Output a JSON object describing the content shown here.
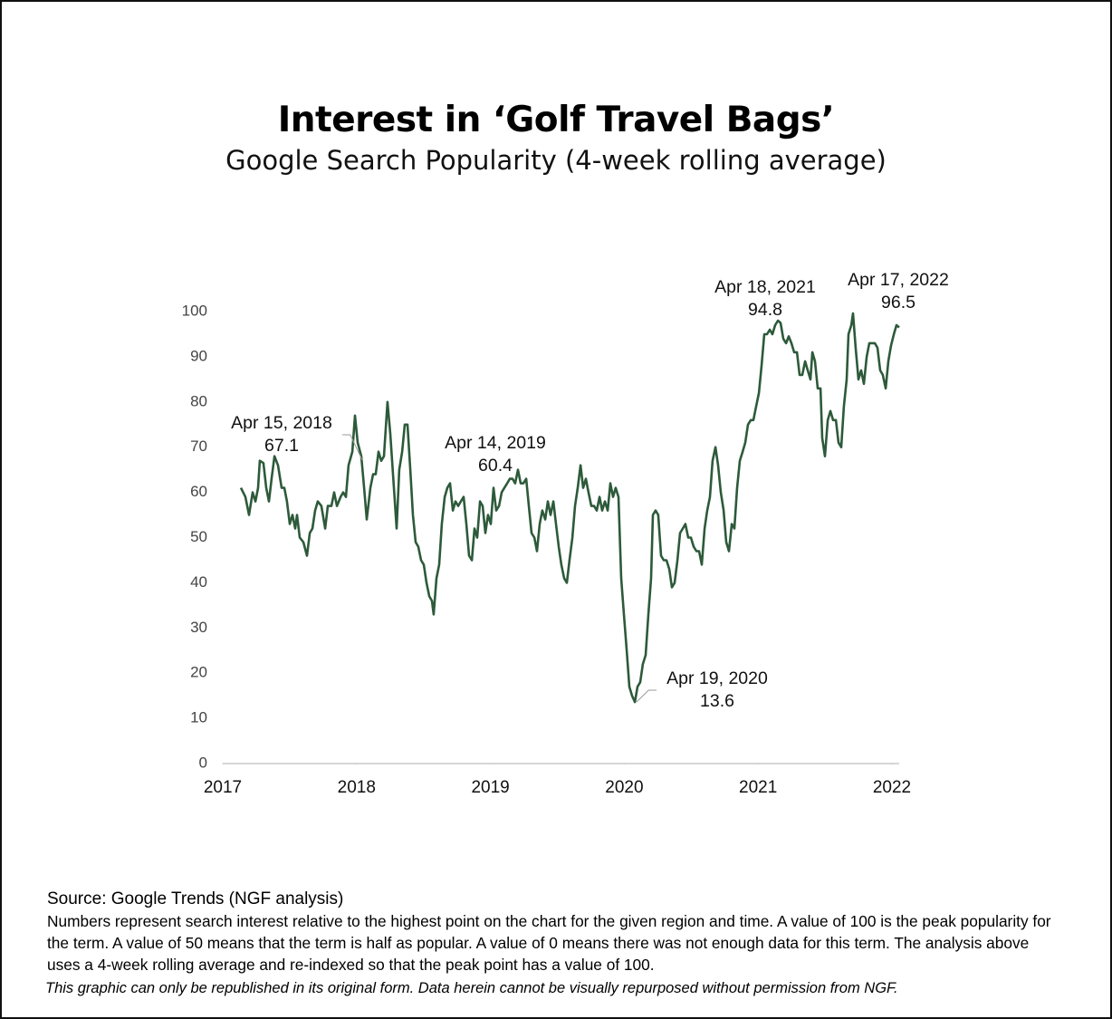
{
  "chart_data": {
    "type": "line",
    "title": "Interest in ‘Golf Travel Bags’",
    "subtitle": "Google Search Popularity (4-week rolling average)",
    "source": "Source: Google Trends (NGF analysis)",
    "note": "Numbers represent search interest relative to the highest point on the chart for the given region and time. A value of 100 is the peak popularity for the term. A value of 50 means that the term is half as popular. A value of 0 means there was not enough data for this term. The analysis above uses a 4-week rolling average and re-indexed so that the peak point has a value of 100.",
    "disclaimer": "This graphic can only be republished in its original form. Data herein cannot be visually repurposed without permission from NGF.",
    "color": "#2d5a3a",
    "xlim": [
      2017,
      2022
    ],
    "xticks": [
      2017,
      2018,
      2019,
      2020,
      2021,
      2022
    ],
    "ylim": [
      0,
      100
    ],
    "yticks": [
      0,
      10,
      20,
      30,
      40,
      50,
      60,
      70,
      80,
      90,
      100
    ],
    "grid": false,
    "x": [
      2017.135,
      2017.169,
      2017.196,
      2017.223,
      2017.244,
      2017.264,
      2017.277,
      2017.304,
      2017.325,
      2017.345,
      2017.365,
      2017.386,
      2017.413,
      2017.44,
      2017.46,
      2017.48,
      2017.501,
      2017.521,
      2017.541,
      2017.555,
      2017.575,
      2017.602,
      2017.629,
      2017.65,
      2017.67,
      2017.69,
      2017.71,
      2017.737,
      2017.765,
      2017.785,
      2017.812,
      2017.832,
      2017.853,
      2017.88,
      2017.9,
      2017.92,
      2017.94,
      2017.968,
      2017.988,
      2018.008,
      2018.035,
      2018.056,
      2018.076,
      2018.103,
      2018.123,
      2018.143,
      2018.164,
      2018.184,
      2018.204,
      2018.231,
      2018.252,
      2018.272,
      2018.299,
      2018.319,
      2018.34,
      2018.36,
      2018.38,
      2018.401,
      2018.421,
      2018.441,
      2018.461,
      2018.482,
      2018.502,
      2018.522,
      2018.543,
      2018.563,
      2018.576,
      2018.597,
      2018.617,
      2018.637,
      2018.658,
      2018.678,
      2018.698,
      2018.719,
      2018.739,
      2018.759,
      2018.779,
      2018.8,
      2018.82,
      2018.84,
      2018.861,
      2018.881,
      2018.901,
      2018.922,
      2018.942,
      2018.962,
      2018.982,
      2019.003,
      2019.023,
      2019.043,
      2019.064,
      2019.084,
      2019.104,
      2019.125,
      2019.145,
      2019.165,
      2019.185,
      2019.206,
      2019.226,
      2019.246,
      2019.267,
      2019.287,
      2019.307,
      2019.328,
      2019.348,
      2019.368,
      2019.388,
      2019.409,
      2019.429,
      2019.449,
      2019.47,
      2019.49,
      2019.51,
      2019.53,
      2019.551,
      2019.571,
      2019.591,
      2019.612,
      2019.632,
      2019.652,
      2019.673,
      2019.693,
      2019.713,
      2019.733,
      2019.754,
      2019.774,
      2019.794,
      2019.815,
      2019.835,
      2019.855,
      2019.876,
      2019.896,
      2019.916,
      2019.936,
      2019.957,
      2019.977,
      2019.997,
      2020.018,
      2020.038,
      2020.058,
      2020.079,
      2020.099,
      2020.119,
      2020.139,
      2020.16,
      2020.18,
      2020.2,
      2020.214,
      2020.234,
      2020.254,
      2020.275,
      2020.295,
      2020.315,
      2020.336,
      2020.356,
      2020.376,
      2020.397,
      2020.417,
      2020.437,
      2020.457,
      2020.478,
      2020.498,
      2020.518,
      2020.539,
      2020.559,
      2020.579,
      2020.6,
      2020.62,
      2020.64,
      2020.66,
      2020.681,
      2020.701,
      2020.721,
      2020.742,
      2020.762,
      2020.782,
      2020.803,
      2020.823,
      2020.843,
      2020.863,
      2020.884,
      2020.904,
      2020.924,
      2020.945,
      2020.965,
      2020.985,
      2021.006,
      2021.026,
      2021.046,
      2021.066,
      2021.087,
      2021.107,
      2021.127,
      2021.148,
      2021.168,
      2021.188,
      2021.209,
      2021.229,
      2021.249,
      2021.269,
      2021.29,
      2021.31,
      2021.33,
      2021.351,
      2021.371,
      2021.391,
      2021.405,
      2021.425,
      2021.445,
      2021.466,
      2021.479,
      2021.499,
      2021.52,
      2021.54,
      2021.56,
      2021.581,
      2021.601,
      2021.621,
      2021.641,
      2021.662,
      2021.675,
      2021.696,
      2021.709,
      2021.729,
      2021.75,
      2021.77,
      2021.79,
      2021.811,
      2021.831,
      2021.851,
      2021.872,
      2021.892,
      2021.912,
      2021.932,
      2021.953,
      2021.973,
      2021.993,
      2022.014,
      2022.034,
      2022.054
    ],
    "values": [
      61,
      59,
      55,
      60,
      58,
      61,
      67,
      66.5,
      61,
      58,
      63,
      68,
      66,
      61,
      61,
      58,
      53,
      55,
      52,
      55,
      50,
      49,
      46,
      51,
      52,
      56,
      58,
      57,
      52,
      57,
      57,
      60,
      57,
      59,
      60,
      59,
      66,
      69,
      77,
      71,
      68,
      61,
      54,
      61,
      64,
      64,
      69,
      67,
      68,
      80,
      73,
      64,
      52,
      65,
      69,
      75,
      75,
      65,
      55,
      49,
      48,
      45,
      44,
      40,
      37,
      36,
      33,
      41,
      44,
      53,
      59,
      61,
      62,
      56,
      58,
      57,
      58,
      59,
      53,
      46,
      45,
      52,
      50,
      58,
      57,
      51,
      55,
      53,
      61,
      56,
      57,
      60,
      61,
      62,
      63,
      63,
      62,
      65,
      62,
      62,
      63,
      57,
      51,
      50,
      47,
      53,
      56,
      54,
      58,
      55,
      58,
      53,
      48,
      44,
      41,
      40,
      45,
      50,
      57,
      61,
      66,
      61,
      63,
      60,
      57,
      57,
      56,
      59,
      56,
      58,
      56,
      62,
      59,
      61,
      59,
      41,
      33,
      25,
      17,
      15,
      13.6,
      17,
      18,
      22,
      24,
      33,
      41,
      55,
      56,
      55,
      46,
      45,
      45,
      43,
      39,
      40,
      45,
      51,
      52,
      53,
      50,
      50,
      48,
      47,
      47,
      44,
      52,
      56,
      59,
      67,
      70,
      66,
      60,
      56,
      49,
      47,
      53,
      52,
      61,
      67,
      69,
      71,
      75,
      76,
      76,
      79,
      82,
      88,
      95,
      95,
      96,
      95,
      97,
      98,
      97.5,
      94,
      93,
      94.5,
      93,
      91,
      91,
      86,
      86,
      89,
      87,
      85,
      91,
      89,
      83,
      83,
      72,
      68,
      76,
      78,
      76,
      76,
      71,
      70,
      79,
      85,
      95,
      97,
      99.6,
      92,
      85,
      87,
      84,
      90,
      93,
      93,
      93,
      92,
      87,
      86,
      83,
      89,
      92.5,
      95,
      97,
      96.5
    ],
    "annotations": [
      {
        "label": "Apr 15, 2018",
        "value": 67.1
      },
      {
        "label": "Apr 14, 2019",
        "value": 60.4
      },
      {
        "label": "Apr 19, 2020",
        "value": 13.6
      },
      {
        "label": "Apr 18, 2021",
        "value": 94.8
      },
      {
        "label": "Apr 17, 2022",
        "value": 96.5
      }
    ]
  }
}
